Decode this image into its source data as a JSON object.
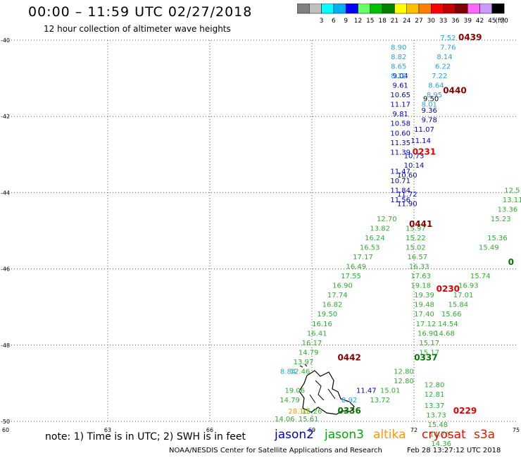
{
  "header": {
    "title": "00:00 – 11:59 UTC 02/27/2018",
    "subtitle": "12 hour collection of altimeter wave heights"
  },
  "colorbar": {
    "unit": "(ft)",
    "bins": [
      {
        "label": "",
        "color": "#808080"
      },
      {
        "label": "3",
        "color": "#bfbfbf"
      },
      {
        "label": "6",
        "color": "#00ffff"
      },
      {
        "label": "9",
        "color": "#00b0f0"
      },
      {
        "label": "12",
        "color": "#0000ff"
      },
      {
        "label": "15",
        "color": "#66ff66"
      },
      {
        "label": "18",
        "color": "#00c000"
      },
      {
        "label": "21",
        "color": "#008000"
      },
      {
        "label": "24",
        "color": "#ffff00"
      },
      {
        "label": "27",
        "color": "#ffc000"
      },
      {
        "label": "30",
        "color": "#ff8000"
      },
      {
        "label": "33",
        "color": "#ff0000"
      },
      {
        "label": "36",
        "color": "#c00000"
      },
      {
        "label": "39",
        "color": "#800000"
      },
      {
        "label": "42",
        "color": "#ff66ff"
      },
      {
        "label": "45",
        "color": "#cc99ff"
      },
      {
        "label": "70",
        "color": "#000000"
      }
    ]
  },
  "chart_data": {
    "type": "scatter",
    "xlabel": "",
    "ylabel": "",
    "xlim": [
      60,
      75
    ],
    "ylim": [
      -50,
      -40
    ],
    "x_ticks": [
      60,
      63,
      66,
      69,
      72,
      75
    ],
    "y_ticks": [
      -40,
      -42,
      -44,
      -46,
      -48,
      -50
    ],
    "grid": true,
    "series": [
      {
        "name": "jason2",
        "color": "#0000cc",
        "points": [
          {
            "x": 71.6,
            "y": -41.0,
            "v": 9.04
          },
          {
            "x": 71.6,
            "y": -41.25,
            "v": 9.61
          },
          {
            "x": 71.6,
            "y": -41.5,
            "v": 10.65
          },
          {
            "x": 71.6,
            "y": -41.75,
            "v": 11.17
          },
          {
            "x": 71.6,
            "y": -42.0,
            "v": 9.81
          },
          {
            "x": 71.6,
            "y": -42.25,
            "v": 10.58
          },
          {
            "x": 71.6,
            "y": -42.5,
            "v": 10.6
          },
          {
            "x": 71.6,
            "y": -42.75,
            "v": 11.35
          },
          {
            "x": 71.6,
            "y": -43.0,
            "v": 11.39
          },
          {
            "x": 71.6,
            "y": -43.5,
            "v": 11.47
          },
          {
            "x": 71.6,
            "y": -43.75,
            "v": 10.71
          },
          {
            "x": 71.6,
            "y": -44.0,
            "v": 11.84
          },
          {
            "x": 71.6,
            "y": -44.25,
            "v": 11.56
          },
          {
            "x": 72.45,
            "y": -41.9,
            "v": 9.36
          },
          {
            "x": 72.45,
            "y": -42.15,
            "v": 9.78
          },
          {
            "x": 72.3,
            "y": -42.4,
            "v": 11.07
          },
          {
            "x": 72.2,
            "y": -42.7,
            "v": 11.14
          },
          {
            "x": 72.0,
            "y": -43.1,
            "v": 10.73
          },
          {
            "x": 72.0,
            "y": -43.35,
            "v": 10.14
          },
          {
            "x": 71.8,
            "y": -43.6,
            "v": 10.6
          },
          {
            "x": 71.8,
            "y": -44.1,
            "v": 11.72
          },
          {
            "x": 71.8,
            "y": -44.35,
            "v": 11.9
          },
          {
            "x": 70.6,
            "y": -49.25,
            "v": 11.47
          }
        ]
      },
      {
        "name": "jason3",
        "color": "#33aa33",
        "points": [
          {
            "x": 71.2,
            "y": -44.75,
            "v": 12.7
          },
          {
            "x": 71.0,
            "y": -45.0,
            "v": 13.82
          },
          {
            "x": 70.85,
            "y": -45.25,
            "v": 16.24
          },
          {
            "x": 70.7,
            "y": -45.5,
            "v": 16.53
          },
          {
            "x": 70.5,
            "y": -45.75,
            "v": 17.17
          },
          {
            "x": 70.3,
            "y": -46.0,
            "v": 16.49
          },
          {
            "x": 70.15,
            "y": -46.25,
            "v": 17.55
          },
          {
            "x": 69.9,
            "y": -46.5,
            "v": 16.9
          },
          {
            "x": 69.75,
            "y": -46.75,
            "v": 17.74
          },
          {
            "x": 69.6,
            "y": -47.0,
            "v": 16.82
          },
          {
            "x": 69.45,
            "y": -47.25,
            "v": 19.5
          },
          {
            "x": 69.3,
            "y": -47.5,
            "v": 16.16
          },
          {
            "x": 69.15,
            "y": -47.75,
            "v": 16.41
          },
          {
            "x": 69.0,
            "y": -48.0,
            "v": 16.17
          },
          {
            "x": 68.9,
            "y": -48.25,
            "v": 14.79
          },
          {
            "x": 68.75,
            "y": -48.5,
            "v": 13.97
          },
          {
            "x": 68.65,
            "y": -48.75,
            "v": 12.46
          },
          {
            "x": 68.5,
            "y": -49.25,
            "v": 19.06
          },
          {
            "x": 68.35,
            "y": -49.5,
            "v": 14.79
          },
          {
            "x": 68.2,
            "y": -50.0,
            "v": 14.06
          },
          {
            "x": 69.0,
            "y": -49.8,
            "v": 15.26
          },
          {
            "x": 68.9,
            "y": -50.0,
            "v": 15.61
          },
          {
            "x": 72.05,
            "y": -45.0,
            "v": 15.97
          },
          {
            "x": 72.05,
            "y": -45.25,
            "v": 15.22
          },
          {
            "x": 72.05,
            "y": -45.5,
            "v": 15.02
          },
          {
            "x": 72.1,
            "y": -45.75,
            "v": 16.57
          },
          {
            "x": 72.15,
            "y": -46.0,
            "v": 16.33
          },
          {
            "x": 72.2,
            "y": -46.25,
            "v": 17.63
          },
          {
            "x": 72.2,
            "y": -46.5,
            "v": 19.18
          },
          {
            "x": 72.3,
            "y": -46.75,
            "v": 19.39
          },
          {
            "x": 72.3,
            "y": -47.0,
            "v": 19.48
          },
          {
            "x": 72.3,
            "y": -47.25,
            "v": 17.4
          },
          {
            "x": 72.35,
            "y": -47.5,
            "v": 17.12
          },
          {
            "x": 72.4,
            "y": -47.75,
            "v": 16.9
          },
          {
            "x": 72.45,
            "y": -48.0,
            "v": 15.17
          },
          {
            "x": 72.45,
            "y": -48.25,
            "v": 15.17
          },
          {
            "x": 71.7,
            "y": -48.75,
            "v": 12.8
          },
          {
            "x": 71.7,
            "y": -49.0,
            "v": 12.8
          },
          {
            "x": 71.3,
            "y": -49.25,
            "v": 15.01
          },
          {
            "x": 71.0,
            "y": -49.5,
            "v": 13.72
          },
          {
            "x": 72.6,
            "y": -49.1,
            "v": 12.8
          },
          {
            "x": 72.6,
            "y": -49.35,
            "v": 12.81
          },
          {
            "x": 72.6,
            "y": -49.65,
            "v": 13.37
          },
          {
            "x": 72.65,
            "y": -49.9,
            "v": 13.73
          },
          {
            "x": 72.7,
            "y": -50.15,
            "v": 15.48
          },
          {
            "x": 72.75,
            "y": -50.4,
            "v": 14.76
          },
          {
            "x": 72.8,
            "y": -50.65,
            "v": 14.36
          },
          {
            "x": 73.95,
            "y": -46.25,
            "v": 15.74
          },
          {
            "x": 73.6,
            "y": -46.5,
            "v": 16.93
          },
          {
            "x": 73.45,
            "y": -46.75,
            "v": 17.01
          },
          {
            "x": 73.3,
            "y": -47.0,
            "v": 15.84
          },
          {
            "x": 73.1,
            "y": -47.25,
            "v": 15.66
          },
          {
            "x": 73.0,
            "y": -47.5,
            "v": 14.54
          },
          {
            "x": 72.9,
            "y": -47.75,
            "v": 14.68
          },
          {
            "x": 74.2,
            "y": -45.5,
            "v": 15.49
          },
          {
            "x": 74.45,
            "y": -45.25,
            "v": 15.36
          },
          {
            "x": 74.55,
            "y": -44.75,
            "v": 15.23
          },
          {
            "x": 74.75,
            "y": -44.5,
            "v": 13.36
          },
          {
            "x": 74.9,
            "y": -44.25,
            "v": 13.11
          },
          {
            "x": 74.95,
            "y": -44.0,
            "v": 12.51
          }
        ]
      },
      {
        "name": "altika",
        "color": "#e6a020",
        "points": [
          {
            "x": 68.6,
            "y": -49.8,
            "v": 28.1
          }
        ]
      },
      {
        "name": "cryosat",
        "color": "#2aa0e0",
        "points": [
          {
            "x": 71.55,
            "y": -40.25,
            "v": 8.9
          },
          {
            "x": 71.55,
            "y": -40.5,
            "v": 8.82
          },
          {
            "x": 71.55,
            "y": -40.75,
            "v": 8.65
          },
          {
            "x": 71.55,
            "y": -41.0,
            "v": 8.12
          },
          {
            "x": 73.0,
            "y": -40.0,
            "v": 7.52
          },
          {
            "x": 73.0,
            "y": -40.25,
            "v": 7.76
          },
          {
            "x": 72.9,
            "y": -40.5,
            "v": 8.14
          },
          {
            "x": 72.85,
            "y": -40.75,
            "v": 6.22
          },
          {
            "x": 72.75,
            "y": -41.0,
            "v": 7.22
          },
          {
            "x": 72.65,
            "y": -41.25,
            "v": 8.64
          },
          {
            "x": 72.6,
            "y": -41.5,
            "v": 8.95
          },
          {
            "x": 72.45,
            "y": -41.75,
            "v": 8.01
          },
          {
            "x": 68.3,
            "y": -48.75,
            "v": 8.84
          },
          {
            "x": 70.1,
            "y": -49.5,
            "v": 8.92
          }
        ]
      },
      {
        "name": "s3a",
        "color": "#000000",
        "points": [
          {
            "x": 72.5,
            "y": -41.6,
            "v": 9.5
          }
        ]
      }
    ],
    "annotations": [
      {
        "text": "0439",
        "x": 73.65,
        "y": -40.0,
        "color": "#880000"
      },
      {
        "text": "0440",
        "x": 73.2,
        "y": -41.4,
        "color": "#880000"
      },
      {
        "text": "0231",
        "x": 72.3,
        "y": -43.0,
        "color": "#e00000"
      },
      {
        "text": "0441",
        "x": 72.2,
        "y": -44.9,
        "color": "#880000"
      },
      {
        "text": "0230",
        "x": 73.0,
        "y": -46.6,
        "color": "#e00000"
      },
      {
        "text": "0337",
        "x": 72.35,
        "y": -48.4,
        "color": "#007700"
      },
      {
        "text": "0442",
        "x": 70.1,
        "y": -48.4,
        "color": "#880000"
      },
      {
        "text": "0336",
        "x": 70.1,
        "y": -49.8,
        "color": "#007700"
      },
      {
        "text": "0229",
        "x": 73.5,
        "y": -49.8,
        "color": "#e00000"
      },
      {
        "text": "0",
        "x": 74.85,
        "y": -45.9,
        "color": "#007700"
      }
    ]
  },
  "footer": {
    "note": "note: 1) Time is in UTC; 2) SWH is in feet",
    "sat_jason2": "jason2",
    "sat_jason3": "jason3",
    "sat_altika": "altika",
    "sat_cryosat": "cryosat",
    "sat_s3a": "s3a",
    "credit": "NOAA/NESDIS Center for Satellite Applications and Research",
    "stamp": "Feb 28 13:27:12 UTC 2018"
  }
}
